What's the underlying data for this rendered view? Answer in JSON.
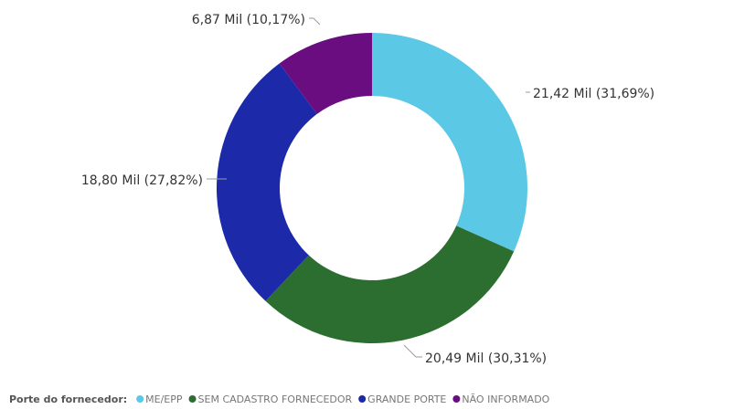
{
  "chart_data": {
    "type": "pie",
    "style": "donut",
    "legend_title": "Porte do fornecedor:",
    "legend_position": "bottom-left",
    "categories": [
      "ME/EPP",
      "SEM CADASTRO FORNECEDOR",
      "GRANDE PORTE",
      "NÃO INFORMADO"
    ],
    "values": [
      21.42,
      20.49,
      18.8,
      6.87
    ],
    "percentages": [
      31.69,
      30.31,
      27.82,
      10.17
    ],
    "data_labels": [
      "21,42 Mil (31,69%)",
      "20,49 Mil (30,31%)",
      "18,80 Mil (27,82%)",
      "6,87 Mil (10,17%)"
    ],
    "colors": [
      "#5bc8e6",
      "#2c6e2f",
      "#1c2aa9",
      "#6a0d80"
    ]
  }
}
